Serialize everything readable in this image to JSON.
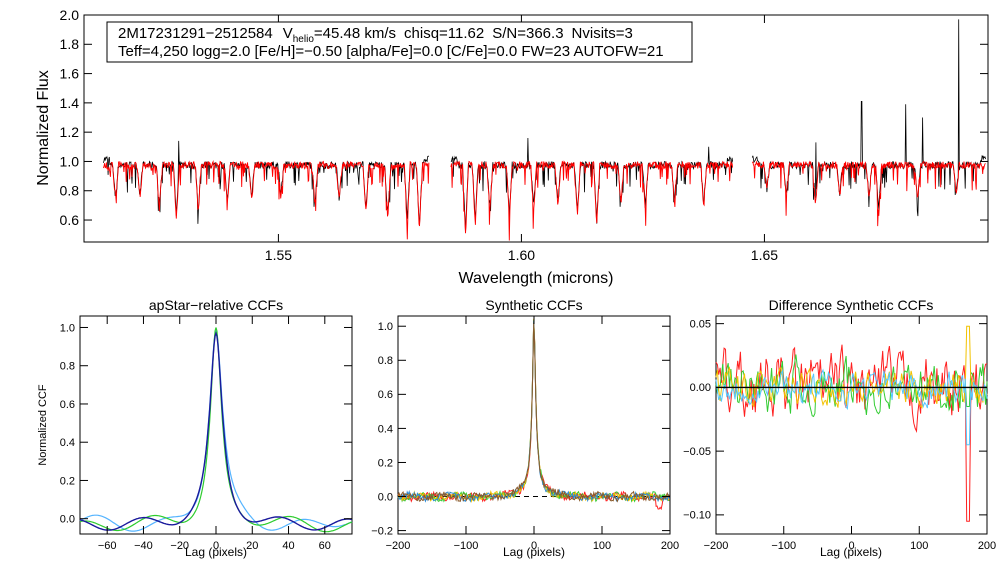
{
  "chart_data": [
    {
      "type": "line",
      "panel": "spectrum",
      "ylabel": "Normalized Flux",
      "xlabel": "Wavelength (microns)",
      "xlim": [
        1.51,
        1.696
      ],
      "ylim": [
        0.45,
        2.0
      ],
      "xticks": [
        1.55,
        1.6,
        1.65
      ],
      "xtick_labels": [
        "1.55",
        "1.60",
        "1.65"
      ],
      "yticks": [
        0.6,
        0.8,
        1.0,
        1.2,
        1.4,
        1.6,
        1.8,
        2.0
      ],
      "ytick_labels": [
        "0.6",
        "0.8",
        "1.0",
        "1.2",
        "1.4",
        "1.6",
        "1.8",
        "2.0"
      ],
      "info": {
        "star_id": "2M17231291−2512584",
        "v_prefix": "V",
        "v_subscript": "helio",
        "v_value": "=45.48 km/s",
        "chisq": "chisq=11.62",
        "snr": "S/N=366.3",
        "nvisits": "Nvisits=3",
        "params": "Teff=4,250 logg=2.0 [Fe/H]=−0.50 [alpha/Fe]=0.0 [C/Fe]=0.0 FW=23 AUTOFW=21"
      },
      "chips": [
        [
          1.514,
          1.581
        ],
        [
          1.5855,
          1.6435
        ],
        [
          1.6475,
          1.6955
        ]
      ],
      "series": [
        {
          "name": "observed spectrum",
          "color": "#000000"
        },
        {
          "name": "model spectrum",
          "color": "#ff0000"
        }
      ],
      "absorption_lines": [
        {
          "x": 1.5165,
          "y": 0.74
        },
        {
          "x": 1.5215,
          "y": 0.76
        },
        {
          "x": 1.5255,
          "y": 0.67
        },
        {
          "x": 1.529,
          "y": 0.6
        },
        {
          "x": 1.5335,
          "y": 0.64
        },
        {
          "x": 1.5395,
          "y": 0.7
        },
        {
          "x": 1.5445,
          "y": 0.72
        },
        {
          "x": 1.5505,
          "y": 0.76
        },
        {
          "x": 1.5575,
          "y": 0.7
        },
        {
          "x": 1.5625,
          "y": 0.73
        },
        {
          "x": 1.568,
          "y": 0.66
        },
        {
          "x": 1.5725,
          "y": 0.6
        },
        {
          "x": 1.5765,
          "y": 0.55
        },
        {
          "x": 1.579,
          "y": 0.52
        },
        {
          "x": 1.5885,
          "y": 0.49
        },
        {
          "x": 1.5905,
          "y": 0.56
        },
        {
          "x": 1.5935,
          "y": 0.67
        },
        {
          "x": 1.5975,
          "y": 0.6
        },
        {
          "x": 1.6025,
          "y": 0.66
        },
        {
          "x": 1.6075,
          "y": 0.7
        },
        {
          "x": 1.6115,
          "y": 0.63
        },
        {
          "x": 1.6155,
          "y": 0.56
        },
        {
          "x": 1.6205,
          "y": 0.7
        },
        {
          "x": 1.6255,
          "y": 0.66
        },
        {
          "x": 1.6315,
          "y": 0.72
        },
        {
          "x": 1.6375,
          "y": 0.68
        },
        {
          "x": 1.6505,
          "y": 0.8
        },
        {
          "x": 1.6545,
          "y": 0.76
        },
        {
          "x": 1.6605,
          "y": 0.7
        },
        {
          "x": 1.6655,
          "y": 0.76
        },
        {
          "x": 1.6715,
          "y": 0.74
        },
        {
          "x": 1.6735,
          "y": 0.62
        },
        {
          "x": 1.6815,
          "y": 0.74
        },
        {
          "x": 1.6895,
          "y": 0.78
        }
      ],
      "emission_spikes": [
        {
          "x": 1.5295,
          "y": 1.14
        },
        {
          "x": 1.6013,
          "y": 1.16
        },
        {
          "x": 1.6385,
          "y": 1.1
        },
        {
          "x": 1.67,
          "y": 1.41
        },
        {
          "x": 1.6791,
          "y": 1.39
        },
        {
          "x": 1.6825,
          "y": 1.3
        },
        {
          "x": 1.69,
          "y": 1.97
        },
        {
          "x": 1.6606,
          "y": 1.13
        }
      ]
    },
    {
      "type": "line",
      "panel": "apstar",
      "title": "apStar−relative CCFs",
      "xlabel": "Lag (pixels)",
      "ylabel": "Normalized CCF",
      "xlim": [
        -75,
        75
      ],
      "ylim": [
        -0.08,
        1.06
      ],
      "xticks": [
        -60,
        -40,
        -20,
        0,
        20,
        40,
        60
      ],
      "xtick_labels": [
        "−60",
        "−40",
        "−20",
        "0",
        "20",
        "40",
        "60"
      ],
      "yticks": [
        0.0,
        0.2,
        0.4,
        0.6,
        0.8,
        1.0
      ],
      "ytick_labels": [
        "0.0",
        "0.2",
        "0.4",
        "0.6",
        "0.8",
        "1.0"
      ],
      "series": [
        {
          "name": "visit 1",
          "color": "#55b4ff",
          "peak": 0.98,
          "width": 4.4,
          "offset": 0.02
        },
        {
          "name": "visit 2",
          "color": "#2ecc2e",
          "peak": 1.0,
          "width": 3.7,
          "offset": -0.01
        },
        {
          "name": "visit 3",
          "color": "#1a1a9c",
          "peak": 0.97,
          "width": 4.2,
          "offset": 0.0
        }
      ]
    },
    {
      "type": "line",
      "panel": "synthetic",
      "title": "Synthetic CCFs",
      "xlabel": "Lag (pixels)",
      "xlim": [
        -200,
        200
      ],
      "ylim": [
        -0.22,
        1.06
      ],
      "xticks": [
        -200,
        -100,
        0,
        100,
        200
      ],
      "xtick_labels": [
        "−200",
        "−100",
        "0",
        "100",
        "200"
      ],
      "yticks": [
        -0.2,
        0.0,
        0.2,
        0.4,
        0.6,
        0.8,
        1.0
      ],
      "ytick_labels": [
        "−0.2",
        "0.0",
        "0.2",
        "0.4",
        "0.6",
        "0.8",
        "1.0"
      ],
      "zero_line": 0.0,
      "series": [
        {
          "name": "ccf 1",
          "color": "#ff2020",
          "peak": 1.0
        },
        {
          "name": "ccf 2",
          "color": "#33cc33",
          "peak": 1.0
        },
        {
          "name": "ccf 3",
          "color": "#f2c200",
          "peak": 1.0
        },
        {
          "name": "ccf 4",
          "color": "#2b8bd6",
          "peak": 1.0
        },
        {
          "name": "ccf 5",
          "color": "#8a5a2a",
          "peak": 1.0
        }
      ]
    },
    {
      "type": "line",
      "panel": "difference",
      "title": "Difference Synthetic CCFs",
      "xlabel": "Lag (pixels)",
      "xlim": [
        -200,
        200
      ],
      "ylim": [
        -0.115,
        0.056
      ],
      "xticks": [
        -200,
        -100,
        0,
        100,
        200
      ],
      "xtick_labels": [
        "−200",
        "−100",
        "0",
        "100",
        "200"
      ],
      "yticks": [
        -0.1,
        -0.05,
        0.0,
        0.05
      ],
      "ytick_labels": [
        "−0.10",
        "−0.05",
        "0.00",
        "0.05"
      ],
      "zero_line": 0.0,
      "series": [
        {
          "name": "diff 1",
          "color": "#ff2020",
          "dip_x": 172,
          "dip_y": -0.105,
          "amp": 0.019
        },
        {
          "name": "diff 2",
          "color": "#33cc33",
          "dip_x": 172,
          "dip_y": -0.015,
          "amp": 0.014
        },
        {
          "name": "diff 3",
          "color": "#f2c200",
          "dip_x": 172,
          "dip_y": 0.048,
          "amp": 0.01
        },
        {
          "name": "diff 4",
          "color": "#55c8ff",
          "dip_x": 172,
          "dip_y": -0.045,
          "amp": 0.009
        }
      ]
    }
  ]
}
